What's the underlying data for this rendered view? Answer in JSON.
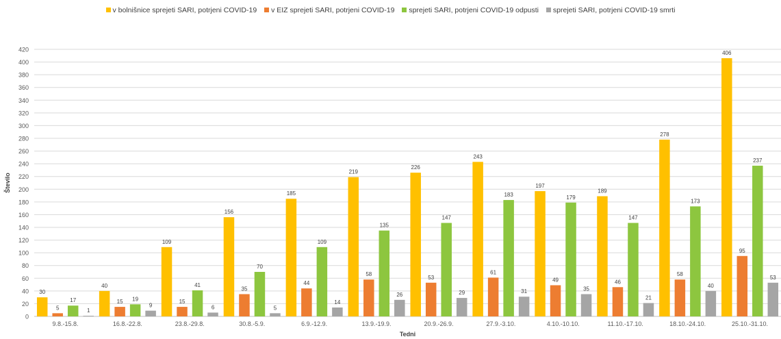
{
  "chart_data": {
    "type": "bar",
    "title": "",
    "xlabel": "Tedni",
    "ylabel": "Število",
    "ylim": [
      0,
      420
    ],
    "ytick_step": 20,
    "grid": true,
    "legend_position": "top",
    "categories": [
      "9.8.-15.8.",
      "16.8.-22.8.",
      "23.8.-29.8.",
      "30.8.-5.9.",
      "6.9.-12.9.",
      "13.9.-19.9.",
      "20.9.-26.9.",
      "27.9.-3.10.",
      "4.10.-10.10.",
      "11.10.-17.10.",
      "18.10.-24.10.",
      "25.10.-31.10."
    ],
    "series": [
      {
        "name": "v bolnišnice sprejeti SARI, potrjeni COVID-19",
        "color": "#FFC000",
        "values": [
          30,
          40,
          109,
          156,
          185,
          219,
          226,
          243,
          197,
          189,
          278,
          406
        ]
      },
      {
        "name": "v EIZ sprejeti SARI, potrjeni COVID-19",
        "color": "#ED7D31",
        "values": [
          5,
          15,
          15,
          35,
          44,
          58,
          53,
          61,
          49,
          46,
          58,
          95
        ]
      },
      {
        "name": "sprejeti SARI, potrjeni COVID-19 odpusti",
        "color": "#8DC63F",
        "values": [
          17,
          19,
          41,
          70,
          109,
          135,
          147,
          183,
          179,
          147,
          173,
          237
        ]
      },
      {
        "name": "sprejeti SARI, potrjeni COVID-19 smrti",
        "color": "#A5A5A5",
        "values": [
          1,
          9,
          6,
          5,
          14,
          26,
          29,
          31,
          35,
          21,
          40,
          53
        ]
      }
    ]
  }
}
